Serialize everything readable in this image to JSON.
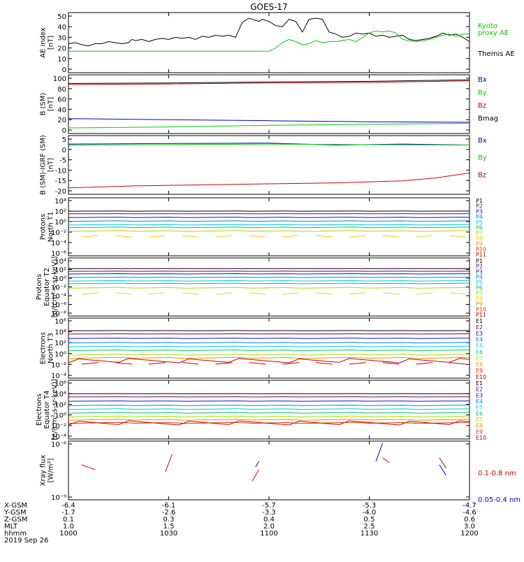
{
  "title": "GOES-17",
  "chart_data": [
    {
      "type": "line",
      "panel": "ae",
      "ylabel": [
        "AE index",
        "[nT]"
      ],
      "yticks": [
        "0",
        "10",
        "20",
        "30",
        "40",
        "50"
      ],
      "ylim": [
        0,
        50
      ],
      "legend": [
        {
          "text": "Kyoto",
          "color": "#00cc00"
        },
        {
          "text": "proxy AE",
          "color": "#00cc00"
        },
        {
          "text": "Themis AE",
          "color": "#000000"
        }
      ],
      "series": [
        {
          "name": "Themis AE",
          "color": "#000000",
          "x": [
            0,
            2,
            4,
            6,
            8,
            10,
            12,
            14,
            16,
            18,
            19,
            20,
            22,
            24,
            26,
            28,
            30,
            32,
            34,
            36,
            38,
            40,
            42,
            44,
            46,
            48,
            50,
            52,
            54,
            56,
            57,
            58,
            60,
            62,
            64,
            66,
            68,
            70,
            72,
            74,
            76,
            78,
            80,
            82,
            84,
            86,
            88,
            90,
            92,
            94,
            96,
            98,
            100,
            102,
            104,
            106,
            108,
            110,
            112,
            114,
            116,
            118,
            120
          ],
          "y": [
            24,
            25,
            23,
            22,
            24,
            24,
            26,
            25,
            24,
            25,
            28,
            27,
            28,
            26,
            28,
            29,
            28,
            30,
            29,
            30,
            28,
            31,
            30,
            32,
            31,
            32,
            30,
            44,
            48,
            46,
            45,
            47,
            45,
            41,
            40,
            47,
            45,
            35,
            47,
            48,
            47,
            35,
            33,
            30,
            31,
            34,
            33,
            34,
            31,
            32,
            30,
            31,
            32,
            28,
            27,
            28,
            29,
            31,
            34,
            32,
            33,
            30,
            26
          ]
        },
        {
          "name": "Kyoto proxy AE",
          "color": "#00cc00",
          "x": [
            0,
            10,
            20,
            30,
            40,
            50,
            60,
            62,
            64,
            66,
            68,
            70,
            72,
            74,
            76,
            78,
            80,
            82,
            84,
            86,
            88,
            90,
            92,
            94,
            96,
            98,
            100,
            102,
            104,
            106,
            108,
            110,
            112,
            114,
            116,
            118,
            120
          ],
          "y": [
            17,
            17,
            17,
            17,
            17,
            17,
            17,
            20,
            25,
            28,
            26,
            23,
            24,
            27,
            25,
            26,
            26,
            27,
            28,
            26,
            30,
            34,
            36,
            35,
            36,
            34,
            28,
            27,
            26,
            27,
            28,
            30,
            32,
            33,
            31,
            33,
            33
          ]
        }
      ]
    },
    {
      "type": "line",
      "panel": "b_sm",
      "ylabel": [
        "B (SM)",
        "[nT]"
      ],
      "yticks": [
        "0",
        "20",
        "40",
        "60",
        "80",
        "100"
      ],
      "ylim": [
        0,
        100
      ],
      "legend": [
        {
          "text": "Bx",
          "color": "#0000cc"
        },
        {
          "text": "By",
          "color": "#00cc00"
        },
        {
          "text": "Bz",
          "color": "#cc0000"
        },
        {
          "text": "Bmag",
          "color": "#000000"
        }
      ],
      "series": [
        {
          "name": "Bmag",
          "color": "#000000",
          "x": [
            0,
            30,
            60,
            90,
            120
          ],
          "y": [
            90,
            91,
            93,
            94,
            97
          ]
        },
        {
          "name": "Bz",
          "color": "#cc0000",
          "x": [
            0,
            30,
            60,
            90,
            120
          ],
          "y": [
            88,
            89,
            91,
            92,
            95
          ]
        },
        {
          "name": "Bx",
          "color": "#0000cc",
          "x": [
            0,
            30,
            60,
            90,
            120
          ],
          "y": [
            22,
            20,
            18,
            16,
            15
          ]
        },
        {
          "name": "By",
          "color": "#00cc00",
          "x": [
            0,
            30,
            60,
            90,
            120
          ],
          "y": [
            4,
            6,
            9,
            11,
            13
          ]
        }
      ]
    },
    {
      "type": "line",
      "panel": "b_igrf",
      "ylabel": [
        "B (SM)-IGRF (SM)",
        "[nT]"
      ],
      "yticks": [
        "-20",
        "-15",
        "-10",
        "-5",
        "0",
        "5"
      ],
      "ylim": [
        -20,
        6
      ],
      "legend": [
        {
          "text": "Bx",
          "color": "#0000cc"
        },
        {
          "text": "By",
          "color": "#00cc00"
        },
        {
          "text": "Bz",
          "color": "#cc0000"
        }
      ],
      "series": [
        {
          "name": "Bx",
          "color": "#0000cc",
          "x": [
            0,
            30,
            60,
            80,
            100,
            120
          ],
          "y": [
            3.5,
            3.8,
            4,
            3,
            3.5,
            3
          ]
        },
        {
          "name": "By",
          "color": "#00cc00",
          "x": [
            0,
            30,
            60,
            90,
            120
          ],
          "y": [
            3,
            3.2,
            3.5,
            3.2,
            3
          ]
        },
        {
          "name": "Bz",
          "color": "#cc0000",
          "x": [
            0,
            20,
            40,
            60,
            80,
            100,
            110,
            120
          ],
          "y": [
            -18.5,
            -17.5,
            -17,
            -16.5,
            -16,
            -15,
            -13.5,
            -11
          ]
        }
      ]
    },
    {
      "type": "line",
      "panel": "protons_t1",
      "log": true,
      "ylabel": [
        "Protons",
        "North T1"
      ],
      "yticks": [
        "10⁴",
        "10²",
        "10⁰",
        "10⁻²",
        "10⁻⁴",
        "10⁻⁶"
      ],
      "ylim": [
        -6,
        4
      ],
      "channels": [
        {
          "text": "P1",
          "color": "#000000",
          "level": 2.0
        },
        {
          "text": "P2",
          "color": "#6a006a",
          "level": 1.5
        },
        {
          "text": "P3",
          "color": "#1010c8",
          "level": 0.8
        },
        {
          "text": "P4",
          "color": "#0080ff",
          "level": 0.1
        },
        {
          "text": "P5",
          "color": "#00c8e6",
          "level": -0.6
        },
        {
          "text": "P6",
          "color": "#00c864",
          "level": -1.1
        },
        {
          "text": "P7",
          "color": "#a0e000",
          "level": -1.8
        },
        {
          "text": "P8",
          "color": "#f0d000",
          "level": -2.8,
          "dashed": true
        },
        {
          "text": "P9",
          "color": "#f09000"
        },
        {
          "text": "P10",
          "color": "#e03000"
        },
        {
          "text": "P11",
          "color": "#c00000"
        }
      ]
    },
    {
      "type": "line",
      "panel": "protons_t2",
      "log": true,
      "ylabel": [
        "Protons",
        "Equator T2",
        "[p/(cm²-s-sr-keV)]"
      ],
      "yticks": [
        "10⁴",
        "10²",
        "10⁰",
        "10⁻²",
        "10⁻⁴",
        "10⁻⁶",
        "10⁻⁸"
      ],
      "ylim": [
        -8,
        4
      ],
      "channels": [
        {
          "text": "P1",
          "color": "#000000",
          "level": 2.2
        },
        {
          "text": "P2",
          "color": "#6a006a",
          "level": 1.6
        },
        {
          "text": "P3",
          "color": "#1010c8",
          "level": 1.0
        },
        {
          "text": "P4",
          "color": "#0080ff",
          "level": 0.2
        },
        {
          "text": "P5",
          "color": "#00c8e6",
          "level": -0.6
        },
        {
          "text": "P6",
          "color": "#00c864",
          "level": -1.2
        },
        {
          "text": "P7",
          "color": "#a0e000",
          "level": -2.2
        },
        {
          "text": "P8",
          "color": "#f0d000",
          "level": -3.5,
          "dashed": true
        },
        {
          "text": "P9",
          "color": "#f09000"
        },
        {
          "text": "P10",
          "color": "#e03000"
        },
        {
          "text": "P11",
          "color": "#c00000"
        }
      ]
    },
    {
      "type": "line",
      "panel": "electrons_t3",
      "log": true,
      "ylabel": [
        "Electrons",
        "North T3"
      ],
      "yticks": [
        "10⁶",
        "10⁴",
        "10²",
        "10⁰",
        "10⁻²",
        "10⁻⁴"
      ],
      "ylim": [
        -4,
        6
      ],
      "channels": [
        {
          "text": "E1",
          "color": "#000000",
          "level": 4.2
        },
        {
          "text": "E2",
          "color": "#6a006a",
          "level": 3.6
        },
        {
          "text": "E3",
          "color": "#1010c8",
          "level": 2.8
        },
        {
          "text": "E4",
          "color": "#0080ff",
          "level": 2.0
        },
        {
          "text": "E5",
          "color": "#00c8e6",
          "level": 1.3
        },
        {
          "text": "E6",
          "color": "#00c864",
          "level": 0.6
        },
        {
          "text": "E7",
          "color": "#a0e000",
          "level": -0.2
        },
        {
          "text": "E8",
          "color": "#f09000",
          "level": -0.8
        },
        {
          "text": "E9",
          "color": "#e03000"
        },
        {
          "text": "E10",
          "color": "#c00000",
          "level": -1.8,
          "dashed": true
        }
      ]
    },
    {
      "type": "line",
      "panel": "electrons_t4",
      "log": true,
      "ylabel": [
        "Electrons",
        "Equator T4",
        "[e/(cm²-s-sr-keV)]"
      ],
      "yticks": [
        "10⁶",
        "10⁴",
        "10²",
        "10⁰",
        "10⁻²",
        "10⁻⁴"
      ],
      "ylim": [
        -4,
        6
      ],
      "channels": [
        {
          "text": "E1",
          "color": "#000000",
          "level": 4.0
        },
        {
          "text": "E2",
          "color": "#6a006a",
          "level": 3.4
        },
        {
          "text": "E3",
          "color": "#1010c8",
          "level": 2.6
        },
        {
          "text": "E4",
          "color": "#0080ff",
          "level": 1.8
        },
        {
          "text": "E5",
          "color": "#00c8e6",
          "level": 1.1
        },
        {
          "text": "E6",
          "color": "#00c864",
          "level": 0.4
        },
        {
          "text": "E7",
          "color": "#a0e000",
          "level": -0.3
        },
        {
          "text": "E8",
          "color": "#f09000",
          "level": -0.9
        },
        {
          "text": "E9",
          "color": "#e03000",
          "level": -1.5
        },
        {
          "text": "E10",
          "color": "#c00000"
        }
      ]
    },
    {
      "type": "line",
      "panel": "xray",
      "ylabel": [
        "Xray flux",
        "[W/m²]"
      ],
      "yticks": [
        "10⁻⁸",
        "10⁻⁹"
      ],
      "legend": [
        {
          "text": "0.1-0.8 nm",
          "color": "#cc0000"
        },
        {
          "text": "0.05-0.4 nm",
          "color": "#0000cc"
        }
      ]
    }
  ],
  "x_axis": {
    "rows": [
      "X-GSM",
      "Y-GSM",
      "Z-GSM",
      "MLT",
      "hhmm"
    ],
    "date": "2019 Sep 26",
    "columns": [
      [
        "-6.4",
        "-1.7",
        "0.1",
        "1.0",
        "1000"
      ],
      [
        "-6.1",
        "-2.6",
        "0.3",
        "1.5",
        "1030"
      ],
      [
        "-5.7",
        "-3.3",
        "0.4",
        "2.0",
        "1100"
      ],
      [
        "-5.3",
        "-4.0",
        "0.5",
        "2.5",
        "1130"
      ],
      [
        "-4.7",
        "-4.6",
        "0.6",
        "3.0",
        "1200"
      ]
    ],
    "xlim": [
      0,
      120
    ]
  }
}
